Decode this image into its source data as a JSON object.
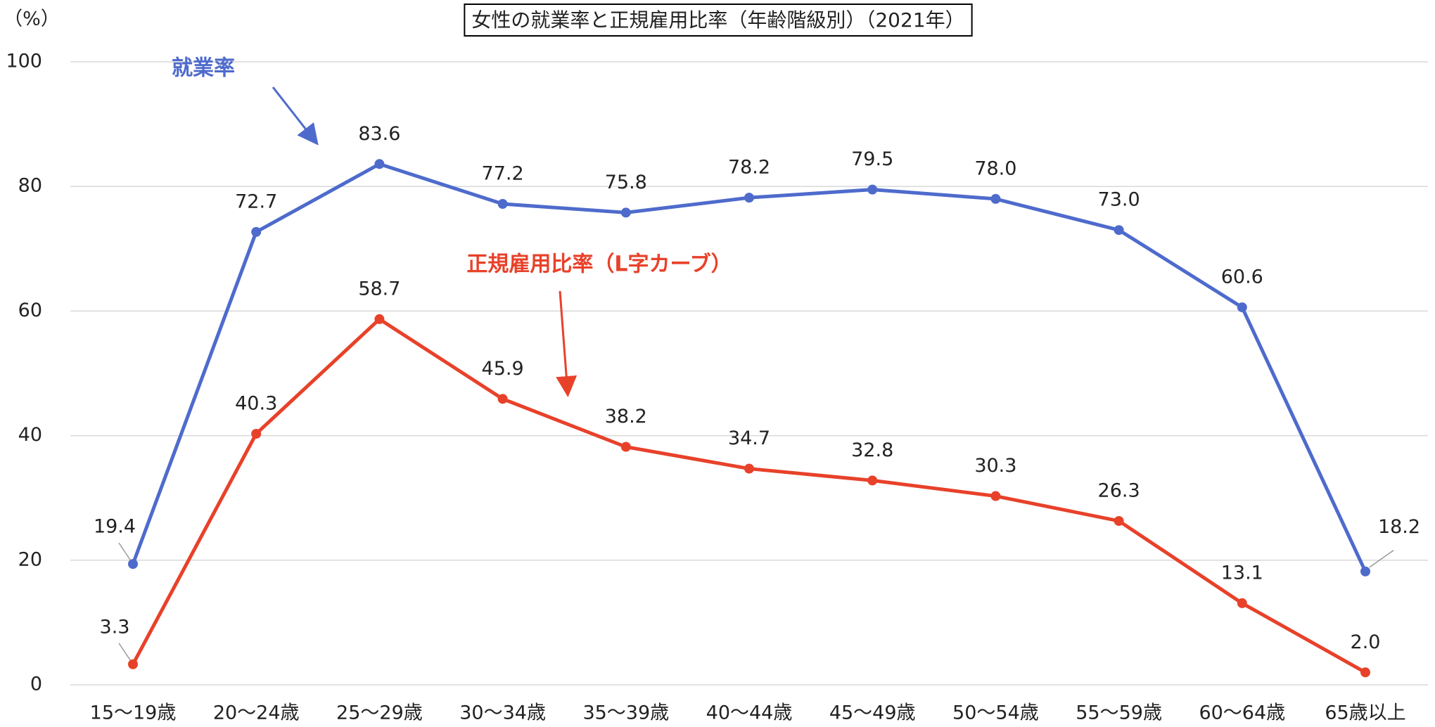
{
  "chart_data": {
    "type": "line",
    "title": "女性の就業率と正規雇用比率（年齢階級別）（2021年）",
    "y_label": "（%）",
    "categories": [
      "15～19歳",
      "20～24歳",
      "25～29歳",
      "30～34歳",
      "35～39歳",
      "40～44歳",
      "45～49歳",
      "50～54歳",
      "55～59歳",
      "60～64歳",
      "65歳以上"
    ],
    "series": [
      {
        "name": "就業率",
        "color": "#4e6bcc",
        "values": [
          19.4,
          72.7,
          83.6,
          77.2,
          75.8,
          78.2,
          79.5,
          78.0,
          73.0,
          60.6,
          18.2
        ],
        "value_labels": [
          "19.4",
          "72.7",
          "83.6",
          "77.2",
          "75.8",
          "78.2",
          "79.5",
          "78.0",
          "73.0",
          "60.6",
          "18.2"
        ]
      },
      {
        "name": "正規雇用比率（L字カーブ）",
        "color": "#e8412a",
        "values": [
          3.3,
          40.3,
          58.7,
          45.9,
          38.2,
          34.7,
          32.8,
          30.3,
          26.3,
          13.1,
          2.0
        ],
        "value_labels": [
          "3.3",
          "40.3",
          "58.7",
          "45.9",
          "38.2",
          "34.7",
          "32.8",
          "30.3",
          "26.3",
          "13.1",
          "2.0"
        ]
      }
    ],
    "ylim": [
      0,
      100
    ],
    "yticks": [
      0,
      20,
      40,
      60,
      80,
      100
    ],
    "grid": true
  }
}
